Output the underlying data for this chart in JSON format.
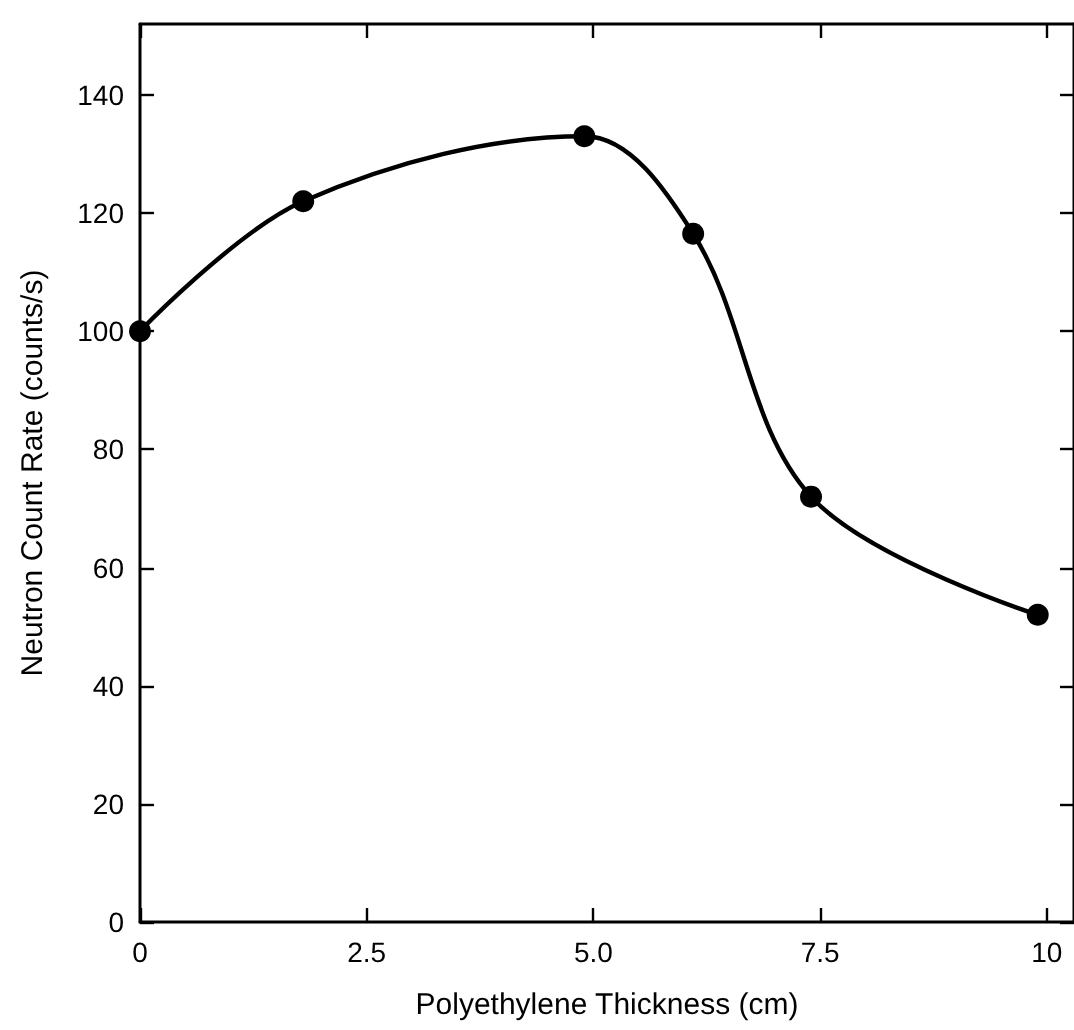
{
  "chart_data": {
    "type": "line",
    "xlabel": "Polyethylene Thickness (cm)",
    "ylabel": "Neutron Count Rate (counts/s)",
    "x": [
      0,
      1.8,
      4.9,
      6.1,
      7.4,
      9.9
    ],
    "series": [
      {
        "color": "#000000",
        "values": [
          100,
          122,
          133,
          116.5,
          72,
          52
        ]
      }
    ],
    "xlim": [
      0,
      10.3
    ],
    "xticks": [
      0,
      2.5,
      {
        "value": 5,
        "label": "5.0"
      },
      7.5,
      10
    ],
    "ylim": [
      0,
      152
    ],
    "yticks": [
      0,
      20,
      40,
      60,
      80,
      100,
      120,
      140
    ],
    "marker": "circle",
    "line_style": "solid"
  }
}
